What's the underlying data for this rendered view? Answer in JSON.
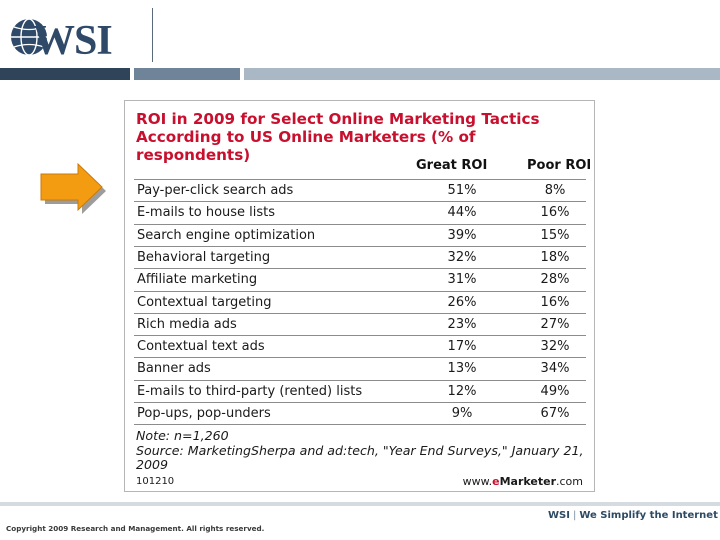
{
  "header": {
    "logo_text": "WSI"
  },
  "colors": {
    "title_red": "#c8102e",
    "arrow_orange": "#f39c12",
    "stripe_navy": "#2f4459",
    "stripe_slate": "#6f8499",
    "stripe_light": "#aab7c4"
  },
  "chart_data": {
    "type": "table",
    "title": "ROI in 2009 for Select Online Marketing Tactics",
    "title_line2": "According to US Online Marketers",
    "subtitle": "(% of respondents)",
    "columns": [
      "Great ROI",
      "Poor ROI"
    ],
    "rows": [
      {
        "label": "Pay-per-click search ads",
        "great": "51%",
        "poor": "8%"
      },
      {
        "label": "E-mails to house lists",
        "great": "44%",
        "poor": "16%"
      },
      {
        "label": "Search engine optimization",
        "great": "39%",
        "poor": "15%"
      },
      {
        "label": "Behavioral targeting",
        "great": "32%",
        "poor": "18%"
      },
      {
        "label": "Affiliate marketing",
        "great": "31%",
        "poor": "28%"
      },
      {
        "label": "Contextual targeting",
        "great": "26%",
        "poor": "16%"
      },
      {
        "label": "Rich media ads",
        "great": "23%",
        "poor": "27%"
      },
      {
        "label": "Contextual text ads",
        "great": "17%",
        "poor": "32%"
      },
      {
        "label": "Banner ads",
        "great": "13%",
        "poor": "34%"
      },
      {
        "label": "E-mails to third-party (rented) lists",
        "great": "12%",
        "poor": "49%"
      },
      {
        "label": "Pop-ups, pop-unders",
        "great": "9%",
        "poor": "67%"
      }
    ],
    "note_line1": "Note: n=1,260",
    "note_line2": "Source: MarketingSherpa and ad:tech, \"Year End Surveys,\" January 21, 2009",
    "chart_id": "101210",
    "source_www": "www.",
    "source_e": "e",
    "source_marketer": "Marketer",
    "source_com": ".com"
  },
  "footer": {
    "copyright": "Copyright 2009 Research and Management. All rights reserved.",
    "brand": "WSI",
    "separator": "|",
    "tagline": "We Simplify the Internet"
  }
}
